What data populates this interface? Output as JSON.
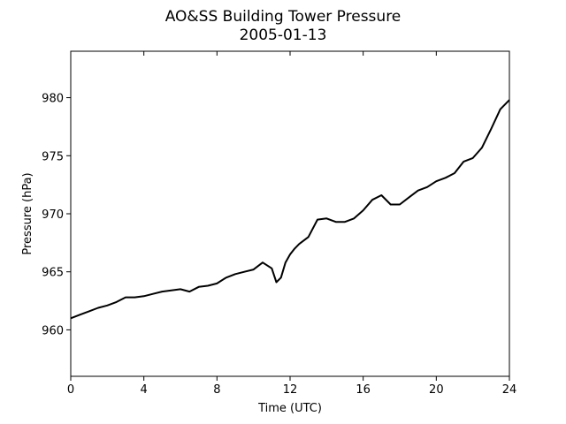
{
  "chart_data": {
    "type": "line",
    "title": "AO&SS Building Tower Pressure",
    "subtitle": "2005-01-13",
    "xlabel": "Time (UTC)",
    "ylabel": "Pressure (hPa)",
    "xlim": [
      0,
      24
    ],
    "ylim": [
      956,
      984
    ],
    "xticks": [
      0,
      4,
      8,
      12,
      16,
      20,
      24
    ],
    "yticks": [
      960,
      965,
      970,
      975,
      980
    ],
    "grid": false,
    "line_color": "#000000",
    "series": [
      {
        "x": [
          0,
          0.5,
          1,
          1.5,
          2,
          2.5,
          3,
          3.5,
          4,
          4.5,
          5,
          5.5,
          6,
          6.5,
          7,
          7.5,
          8,
          8.5,
          9,
          9.5,
          10,
          10.5,
          11,
          11.25,
          11.5,
          11.75,
          12,
          12.25,
          12.5,
          13,
          13.5,
          14,
          14.5,
          15,
          15.5,
          16,
          16.5,
          17,
          17.5,
          18,
          18.5,
          19,
          19.5,
          20,
          20.5,
          21,
          21.5,
          22,
          22.5,
          23,
          23.5,
          24
        ],
        "y": [
          961.0,
          961.3,
          961.6,
          961.9,
          962.1,
          962.4,
          962.8,
          962.8,
          962.9,
          963.1,
          963.3,
          963.4,
          963.5,
          963.3,
          963.7,
          963.8,
          964.0,
          964.5,
          964.8,
          965.0,
          965.2,
          965.8,
          965.3,
          964.1,
          964.5,
          965.8,
          966.5,
          967.0,
          967.4,
          968.0,
          969.5,
          969.6,
          969.3,
          969.3,
          969.6,
          970.3,
          971.2,
          971.6,
          970.8,
          970.8,
          971.4,
          972.0,
          972.3,
          972.8,
          973.1,
          973.5,
          974.5,
          974.8,
          975.7,
          977.3,
          979.0,
          979.8
        ]
      }
    ]
  }
}
